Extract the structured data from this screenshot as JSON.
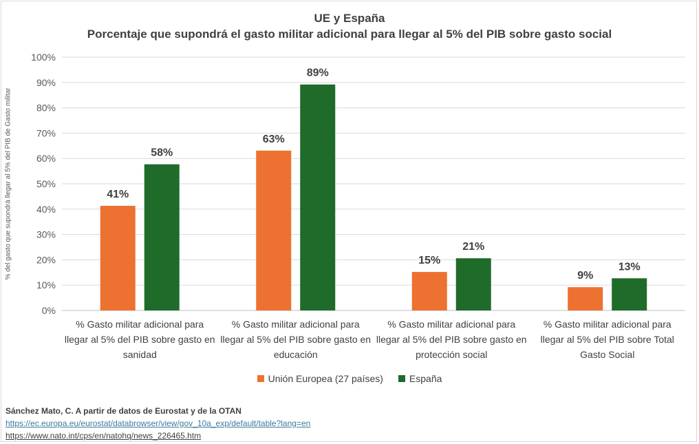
{
  "chart_data": {
    "type": "bar",
    "title": "UE y España",
    "subtitle": "Porcentaje que supondrá el gasto militar adicional para llegar al 5% del PIB sobre gasto social",
    "ylabel": "% del gasto que supondrá llegar al 5% del PIB de Gasto militar",
    "xlabel": "",
    "ylim": [
      0,
      100
    ],
    "yticks": [
      "0%",
      "10%",
      "20%",
      "30%",
      "40%",
      "50%",
      "60%",
      "70%",
      "80%",
      "90%",
      "100%"
    ],
    "grid": true,
    "legend_position": "bottom",
    "categories": [
      [
        "% Gasto militar adicional para",
        "llegar al 5% del PIB sobre gasto en",
        "sanidad"
      ],
      [
        "% Gasto militar adicional para",
        "llegar al 5% del PIB sobre gasto en",
        "educación"
      ],
      [
        "% Gasto militar adicional para",
        "llegar al 5% del PIB sobre gasto en",
        "protección social"
      ],
      [
        "% Gasto militar adicional para",
        "llegar al 5% del PIB sobre Total",
        "Gasto Social"
      ]
    ],
    "series": [
      {
        "name": "Unión Europea (27 países)",
        "color": "#ed7131",
        "values": [
          41.3,
          63.1,
          15.2,
          9.2
        ],
        "labels": [
          "41%",
          "63%",
          "15%",
          "9%"
        ]
      },
      {
        "name": "España",
        "color": "#1e6b2a",
        "values": [
          57.7,
          89.2,
          20.6,
          12.7
        ],
        "labels": [
          "58%",
          "89%",
          "21%",
          "13%"
        ]
      }
    ]
  },
  "source": {
    "text": "Sánchez Mato, C.  A partir de datos de Eurostat y de la OTAN",
    "link1": "https://ec.europa.eu/eurostat/databrowser/view/gov_10a_exp/default/table?lang=en",
    "link2": "https://www.nato.int/cps/en/natohq/news_226465.htm"
  }
}
